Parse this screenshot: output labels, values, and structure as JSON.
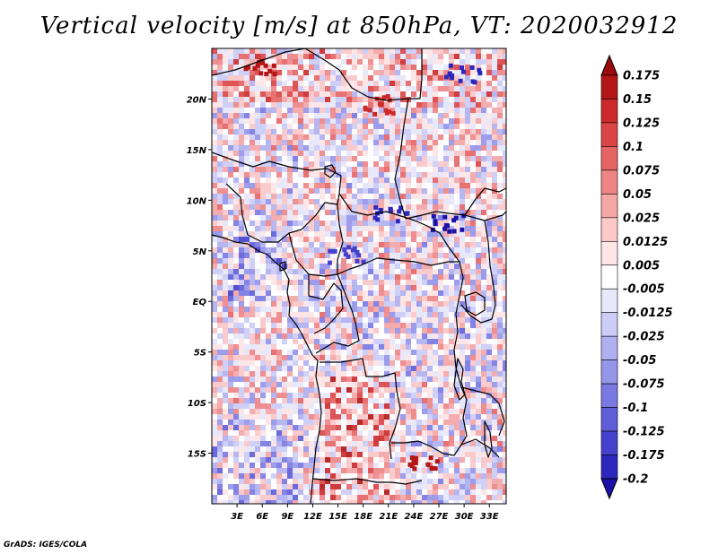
{
  "title": "Vertical velocity [m/s] at 850hPa, VT: 2020032912",
  "credit": "GrADS: IGES/COLA",
  "colors": {
    "positive": [
      "#ffe6e6",
      "#fcc8c8",
      "#f5a6a6",
      "#ee8585",
      "#e56565",
      "#db4545",
      "#cc2a2a",
      "#b31616",
      "#9a0c0c"
    ],
    "negative": [
      "#e8e8fb",
      "#cccdf6",
      "#b0b0f0",
      "#9595ea",
      "#7a79e2",
      "#5f5dd8",
      "#4541cc",
      "#2d27bd",
      "#1a12a8"
    ],
    "zero": "#ffffff",
    "land_border": "#000000"
  },
  "map": {
    "lon_range": [
      0,
      35
    ],
    "lat_range": [
      -20,
      25
    ],
    "lon_ticks": [
      "3E",
      "6E",
      "9E",
      "12E",
      "15E",
      "18E",
      "21E",
      "24E",
      "27E",
      "30E",
      "33E"
    ],
    "lat_ticks": [
      "20N",
      "15N",
      "10N",
      "5N",
      "EQ",
      "5S",
      "10S",
      "15S"
    ]
  },
  "colorbar": {
    "labels": [
      "0.175",
      "0.15",
      "0.125",
      "0.1",
      "0.075",
      "0.05",
      "0.025",
      "0.0125",
      "0.005",
      "-0.005",
      "-0.0125",
      "-0.025",
      "-0.05",
      "-0.075",
      "-0.1",
      "-0.125",
      "-0.175",
      "-0.2"
    ],
    "fills": [
      "#9a0c0c",
      "#b31616",
      "#cc2a2a",
      "#db4545",
      "#e56565",
      "#ee8585",
      "#f5a6a6",
      "#fcc8c8",
      "#ffe6e6",
      "#ffffff",
      "#e8e8fb",
      "#cccdf6",
      "#b0b0f0",
      "#9595ea",
      "#7a79e2",
      "#5f5dd8",
      "#4541cc",
      "#2d27bd",
      "#1a12a8"
    ]
  }
}
